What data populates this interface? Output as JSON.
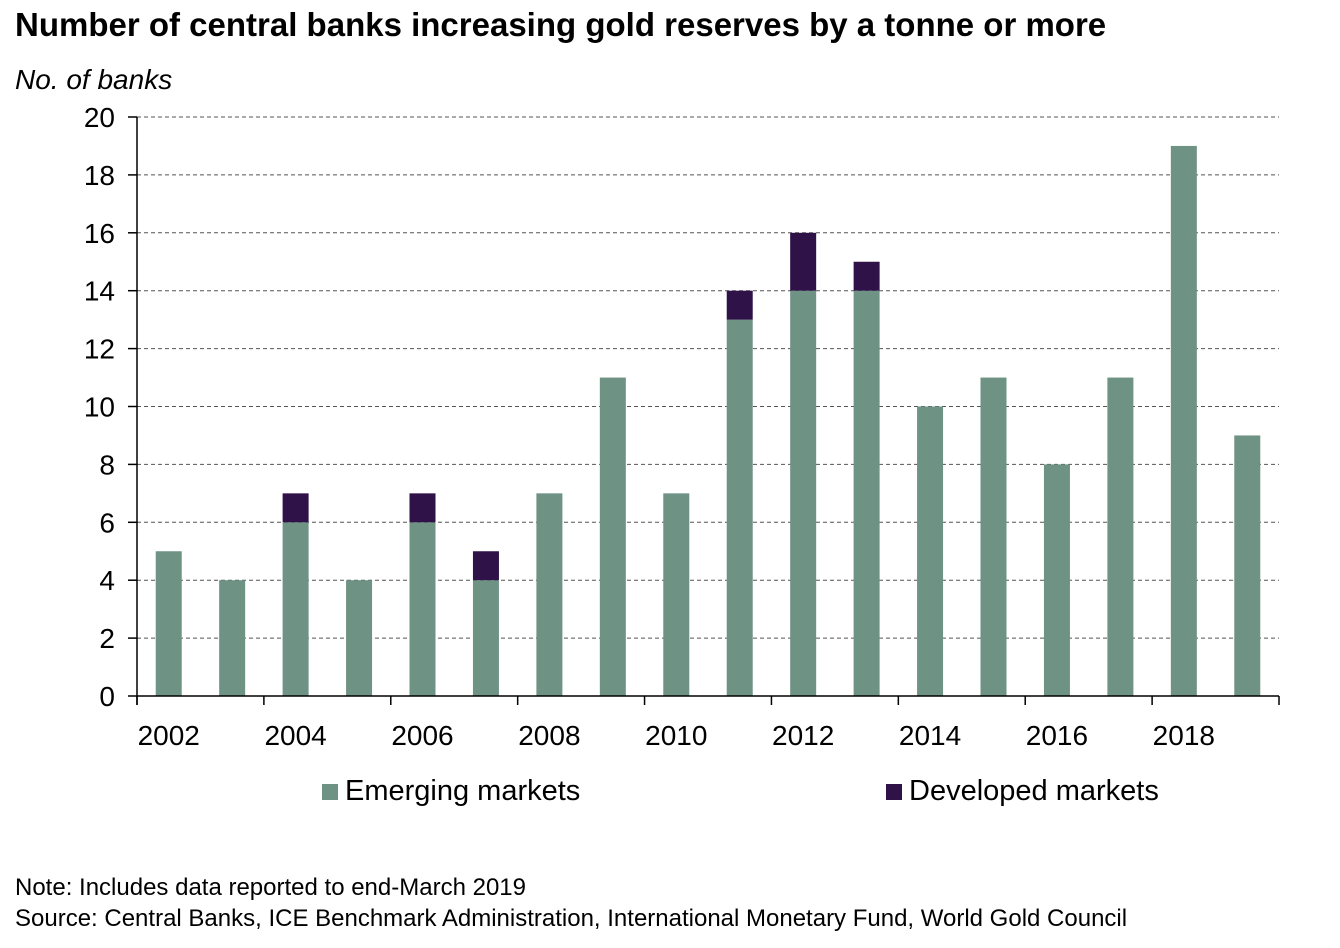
{
  "chart_data": {
    "type": "bar",
    "stacked": true,
    "title": "Number of central banks increasing gold reserves by a tonne or more",
    "ylabel": "No. of banks",
    "categories": [
      "2002",
      "2003",
      "2004",
      "2005",
      "2006",
      "2007",
      "2008",
      "2009",
      "2010",
      "2011",
      "2012",
      "2013",
      "2014",
      "2015",
      "2016",
      "2017",
      "2018",
      "2019"
    ],
    "x_tick_labels": [
      "2002",
      "2004",
      "2006",
      "2008",
      "2010",
      "2012",
      "2014",
      "2016",
      "2018"
    ],
    "y_ticks": [
      0,
      2,
      4,
      6,
      8,
      10,
      12,
      14,
      16,
      18,
      20
    ],
    "ylim": [
      0,
      20
    ],
    "grid": "horizontal dashed",
    "legend_position": "bottom",
    "series": [
      {
        "name": "Emerging markets",
        "color": "#6e9284",
        "values": [
          5,
          4,
          6,
          4,
          6,
          4,
          7,
          11,
          7,
          13,
          14,
          14,
          10,
          11,
          8,
          11,
          19,
          9
        ]
      },
      {
        "name": "Developed markets",
        "color": "#2e1248",
        "values": [
          0,
          0,
          1,
          0,
          1,
          1,
          0,
          0,
          0,
          1,
          2,
          1,
          0,
          0,
          0,
          0,
          0,
          0
        ]
      }
    ],
    "note": "Note: Includes data reported to end-March 2019",
    "source": "Source: Central Banks, ICE Benchmark Administration, International Monetary Fund, World Gold Council"
  }
}
